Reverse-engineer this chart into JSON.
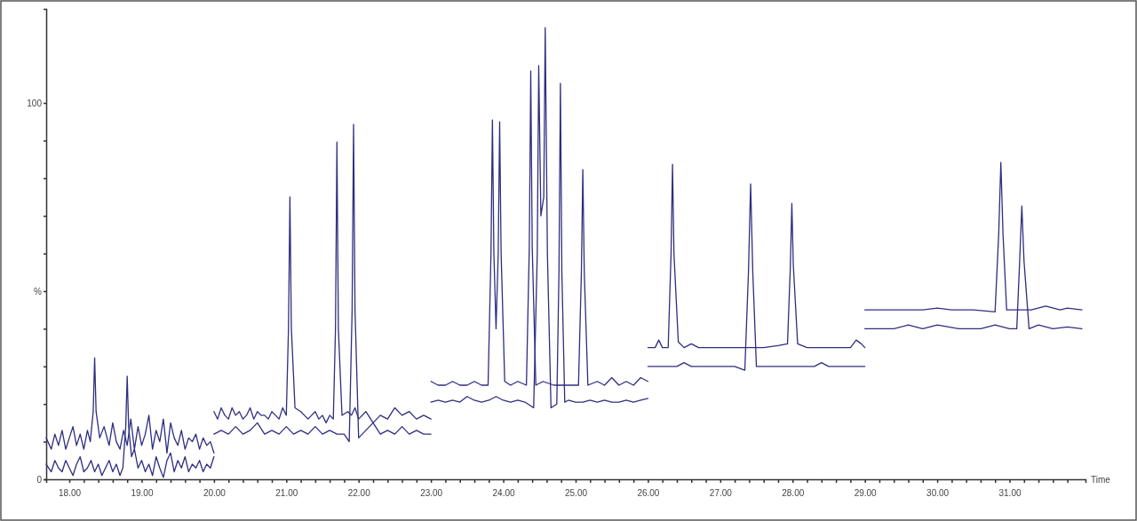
{
  "chart_data": {
    "type": "line",
    "xlabel": "Time",
    "xlim": [
      17.68,
      32.05
    ],
    "ylim": [
      0,
      125
    ],
    "xticks": [
      {
        "value": 18,
        "label": "18.00"
      },
      {
        "value": 18.2,
        "label": null
      },
      {
        "value": 18.4,
        "label": null
      },
      {
        "value": 18.6,
        "label": null
      },
      {
        "value": 18.8,
        "label": null
      },
      {
        "value": 19,
        "label": "19.00"
      },
      {
        "value": 19.2,
        "label": null
      },
      {
        "value": 19.4,
        "label": null
      },
      {
        "value": 19.6,
        "label": null
      },
      {
        "value": 19.8,
        "label": null
      },
      {
        "value": 20,
        "label": "20.00"
      },
      {
        "value": 20.2,
        "label": null
      },
      {
        "value": 20.4,
        "label": null
      },
      {
        "value": 20.6,
        "label": null
      },
      {
        "value": 20.8,
        "label": null
      },
      {
        "value": 21,
        "label": "21.00"
      },
      {
        "value": 21.2,
        "label": null
      },
      {
        "value": 21.4,
        "label": null
      },
      {
        "value": 21.6,
        "label": null
      },
      {
        "value": 21.8,
        "label": null
      },
      {
        "value": 22,
        "label": "22.00"
      },
      {
        "value": 22.2,
        "label": null
      },
      {
        "value": 22.4,
        "label": null
      },
      {
        "value": 22.6,
        "label": null
      },
      {
        "value": 22.8,
        "label": null
      },
      {
        "value": 23,
        "label": "23.00"
      },
      {
        "value": 23.2,
        "label": null
      },
      {
        "value": 23.4,
        "label": null
      },
      {
        "value": 23.6,
        "label": null
      },
      {
        "value": 23.8,
        "label": null
      },
      {
        "value": 24,
        "label": "24.00"
      },
      {
        "value": 24.2,
        "label": null
      },
      {
        "value": 24.4,
        "label": null
      },
      {
        "value": 24.6,
        "label": null
      },
      {
        "value": 24.8,
        "label": null
      },
      {
        "value": 25,
        "label": "25.00"
      },
      {
        "value": 25.2,
        "label": null
      },
      {
        "value": 25.4,
        "label": null
      },
      {
        "value": 25.6,
        "label": null
      },
      {
        "value": 25.8,
        "label": null
      },
      {
        "value": 26,
        "label": "26.00"
      },
      {
        "value": 26.2,
        "label": null
      },
      {
        "value": 26.4,
        "label": null
      },
      {
        "value": 26.6,
        "label": null
      },
      {
        "value": 26.8,
        "label": null
      },
      {
        "value": 27,
        "label": "27.00"
      },
      {
        "value": 27.2,
        "label": null
      },
      {
        "value": 27.4,
        "label": null
      },
      {
        "value": 27.6,
        "label": null
      },
      {
        "value": 27.8,
        "label": null
      },
      {
        "value": 28,
        "label": "28.00"
      },
      {
        "value": 28.2,
        "label": null
      },
      {
        "value": 28.4,
        "label": null
      },
      {
        "value": 28.6,
        "label": null
      },
      {
        "value": 28.8,
        "label": null
      },
      {
        "value": 29,
        "label": "29.00"
      },
      {
        "value": 29.2,
        "label": null
      },
      {
        "value": 29.4,
        "label": null
      },
      {
        "value": 29.6,
        "label": null
      },
      {
        "value": 29.8,
        "label": null
      },
      {
        "value": 30,
        "label": "30.00"
      },
      {
        "value": 30.2,
        "label": null
      },
      {
        "value": 30.4,
        "label": null
      },
      {
        "value": 30.6,
        "label": null
      },
      {
        "value": 30.8,
        "label": null
      },
      {
        "value": 31,
        "label": "31.00"
      },
      {
        "value": 31.2,
        "label": null
      },
      {
        "value": 31.4,
        "label": null
      },
      {
        "value": 31.6,
        "label": null
      },
      {
        "value": 31.8,
        "label": null
      }
    ],
    "yticks": [
      0,
      {
        "value": 10,
        "label": null
      },
      {
        "value": 20,
        "label": null
      },
      {
        "value": 30,
        "label": null
      },
      {
        "value": 40,
        "label": null
      },
      {
        "value": 50,
        "label": "%"
      },
      {
        "value": 60,
        "label": null
      },
      {
        "value": 70,
        "label": null
      },
      {
        "value": 80,
        "label": null
      },
      {
        "value": 90,
        "label": null
      },
      100
    ],
    "grid": false,
    "marker": "none",
    "line_style": "solid",
    "series": [
      {
        "color": "#2e2e80",
        "x": [
          17.68,
          17.75,
          17.8,
          17.85,
          17.9,
          17.95,
          18.0,
          18.05,
          18.1,
          18.15,
          18.2,
          18.25,
          18.29,
          18.33,
          18.35,
          18.37,
          18.42,
          18.48,
          18.55,
          18.6,
          18.65,
          18.7,
          18.75,
          18.8,
          18.85,
          18.9,
          18.95,
          19.0,
          19.05,
          19.1,
          19.15,
          19.2,
          19.25,
          19.3,
          19.35,
          19.4,
          19.45,
          19.5,
          19.55,
          19.6,
          19.65,
          19.7,
          19.75,
          19.8,
          19.85,
          19.9,
          19.95,
          20.0
        ],
        "values": [
          11,
          8,
          12,
          9,
          13,
          8,
          11,
          14,
          9,
          12,
          8,
          13,
          10,
          18,
          32.3,
          18,
          11,
          14,
          9,
          15,
          10,
          8,
          13,
          9,
          16,
          8,
          14,
          9,
          12,
          17,
          8,
          13,
          10,
          16,
          7,
          15,
          11,
          9,
          13,
          8,
          11,
          10,
          12,
          8,
          11,
          9,
          10,
          7
        ]
      },
      {
        "color": "#2e2e80",
        "x": [
          17.68,
          17.75,
          17.8,
          17.85,
          17.9,
          17.95,
          18.0,
          18.05,
          18.1,
          18.15,
          18.2,
          18.25,
          18.3,
          18.35,
          18.4,
          18.45,
          18.5,
          18.55,
          18.6,
          18.65,
          18.7,
          18.74,
          18.78,
          18.8,
          18.82,
          18.86,
          18.9,
          18.95,
          19.0,
          19.05,
          19.1,
          19.15,
          19.2,
          19.25,
          19.3,
          19.35,
          19.4,
          19.45,
          19.5,
          19.55,
          19.6,
          19.65,
          19.7,
          19.75,
          19.8,
          19.85,
          19.9,
          19.95,
          20.0
        ],
        "values": [
          4,
          2,
          5,
          3,
          2,
          5,
          3,
          1,
          4,
          6,
          2,
          3,
          5,
          2,
          4,
          1,
          3,
          5,
          2,
          4,
          1,
          3,
          14,
          27.4,
          14,
          6,
          8,
          3,
          5,
          2,
          4,
          1,
          6,
          3,
          0.5,
          5,
          7,
          2,
          5,
          3,
          6,
          2,
          4,
          3,
          5,
          2,
          4,
          3,
          6
        ]
      },
      {
        "color": "#2e2e80",
        "x": [
          20.0,
          20.05,
          20.1,
          20.15,
          20.2,
          20.25,
          20.3,
          20.35,
          20.4,
          20.45,
          20.5,
          20.55,
          20.6,
          20.65,
          20.7,
          20.75,
          20.8,
          20.85,
          20.9,
          20.95,
          21.0,
          21.03,
          21.05,
          21.07,
          21.12,
          21.2,
          21.25,
          21.3,
          21.35,
          21.4,
          21.45,
          21.5,
          21.55,
          21.6,
          21.65,
          21.68,
          21.7,
          21.72,
          21.77,
          21.85,
          21.9,
          21.95,
          22.0,
          22.1,
          22.2,
          22.3,
          22.4,
          22.5,
          22.6,
          22.7,
          22.8,
          22.9,
          23.0
        ],
        "values": [
          18,
          16,
          19,
          17,
          16,
          19,
          17,
          18,
          16,
          17,
          19,
          16,
          18,
          17,
          17,
          16,
          18,
          17,
          16,
          19,
          17,
          40,
          75,
          40,
          19,
          18,
          17,
          16,
          17,
          18,
          16,
          17,
          15,
          17,
          16,
          40,
          89.6,
          40,
          17,
          18,
          17,
          19,
          16,
          18,
          15,
          17,
          16,
          19,
          17,
          18,
          16,
          17,
          16
        ]
      },
      {
        "color": "#2e2e80",
        "x": [
          20.0,
          20.1,
          20.2,
          20.3,
          20.4,
          20.5,
          20.6,
          20.7,
          20.8,
          20.9,
          21.0,
          21.1,
          21.2,
          21.3,
          21.4,
          21.5,
          21.6,
          21.7,
          21.8,
          21.87,
          21.91,
          21.93,
          21.95,
          22.0,
          22.1,
          22.2,
          22.3,
          22.4,
          22.5,
          22.6,
          22.7,
          22.8,
          22.9,
          23.0
        ],
        "values": [
          12,
          13,
          12,
          14,
          12,
          13,
          15,
          12,
          13,
          12,
          14,
          12,
          13,
          12,
          14,
          12,
          13,
          12,
          12,
          10,
          45,
          94.3,
          45,
          11,
          13,
          15,
          12,
          13,
          12,
          14,
          12,
          13,
          12,
          12
        ]
      },
      {
        "color": "#2e2e80",
        "x": [
          23.0,
          23.1,
          23.2,
          23.3,
          23.4,
          23.5,
          23.6,
          23.7,
          23.79,
          23.83,
          23.85,
          23.87,
          23.9,
          23.93,
          23.95,
          23.97,
          24.02,
          24.1,
          24.2,
          24.32,
          24.36,
          24.38,
          24.4,
          24.45,
          24.55,
          24.7,
          24.8,
          24.9,
          25.04,
          25.08,
          25.1,
          25.12,
          25.17,
          25.3,
          25.4,
          25.5,
          25.6,
          25.7,
          25.8,
          25.9,
          26.0
        ],
        "values": [
          26,
          25,
          25,
          26,
          25,
          25,
          26,
          25,
          25,
          60,
          95.5,
          60,
          40,
          60,
          95,
          60,
          26,
          25,
          26,
          25,
          62,
          108.5,
          62,
          25,
          26,
          25,
          25,
          25,
          25,
          55,
          82.3,
          55,
          25,
          26,
          25,
          27,
          25,
          26,
          25,
          27,
          26
        ]
      },
      {
        "color": "#2e2e80",
        "x": [
          23.0,
          23.1,
          23.2,
          23.3,
          23.4,
          23.5,
          23.6,
          23.7,
          23.8,
          23.9,
          24.0,
          24.1,
          24.2,
          24.3,
          24.42,
          24.47,
          24.49,
          24.52,
          24.56,
          24.58,
          24.61,
          24.66,
          24.74,
          24.77,
          24.79,
          24.81,
          24.85,
          24.9,
          25.0,
          25.1,
          25.2,
          25.3,
          25.4,
          25.5,
          25.6,
          25.7,
          25.8,
          25.9,
          26.0
        ],
        "values": [
          20.5,
          21,
          20.5,
          21,
          20.5,
          22,
          21,
          20.5,
          21,
          22,
          21,
          20.5,
          21,
          20.5,
          19,
          60,
          109.9,
          70,
          75,
          120,
          60,
          19,
          20,
          55,
          105.2,
          55,
          20.5,
          21,
          20.5,
          20.5,
          21,
          20.5,
          21,
          20.5,
          20.5,
          21,
          20.5,
          21,
          21.5
        ]
      },
      {
        "color": "#2e2e80",
        "x": [
          26.0,
          26.1,
          26.15,
          26.2,
          26.28,
          26.32,
          26.34,
          26.36,
          26.42,
          26.5,
          26.6,
          26.7,
          26.8,
          27.0,
          27.2,
          27.4,
          27.6,
          27.8,
          27.93,
          27.97,
          27.99,
          28.01,
          28.07,
          28.2,
          28.4,
          28.6,
          28.8,
          28.88,
          28.95,
          29.0
        ],
        "values": [
          35,
          35,
          37,
          35,
          35,
          60,
          83.7,
          60,
          36.5,
          35,
          36,
          35,
          35,
          35,
          35,
          35,
          35,
          35.5,
          36,
          57,
          73.3,
          57,
          36,
          35,
          35,
          35,
          35,
          37,
          36,
          35
        ]
      },
      {
        "color": "#2e2e80",
        "x": [
          26.0,
          26.2,
          26.4,
          26.5,
          26.6,
          26.8,
          27.0,
          27.2,
          27.34,
          27.39,
          27.42,
          27.45,
          27.5,
          27.7,
          27.9,
          28.1,
          28.3,
          28.4,
          28.5,
          28.7,
          29.0
        ],
        "values": [
          30,
          30,
          30,
          31,
          30,
          30,
          30,
          30,
          29,
          55,
          78.5,
          55,
          30,
          30,
          30,
          30,
          30,
          31,
          30,
          30,
          30
        ]
      },
      {
        "color": "#2e2e80",
        "x": [
          29.0,
          29.4,
          29.8,
          30.0,
          30.2,
          30.5,
          30.8,
          30.85,
          30.88,
          30.91,
          30.96,
          31.1,
          31.3,
          31.5,
          31.7,
          31.8,
          32.0
        ],
        "values": [
          45,
          45,
          45,
          45.5,
          45,
          45,
          44.5,
          65,
          84.2,
          65,
          45,
          45,
          45,
          46,
          45,
          45.5,
          45
        ]
      },
      {
        "color": "#2e2e80",
        "x": [
          29.0,
          29.4,
          29.6,
          29.8,
          30.0,
          30.3,
          30.6,
          30.8,
          31.0,
          31.1,
          31.14,
          31.17,
          31.2,
          31.27,
          31.4,
          31.6,
          31.8,
          32.0
        ],
        "values": [
          40,
          40,
          41,
          40,
          41,
          40,
          40,
          41,
          40,
          40,
          58,
          72.6,
          58,
          40,
          41,
          40,
          40.5,
          40
        ]
      }
    ]
  }
}
